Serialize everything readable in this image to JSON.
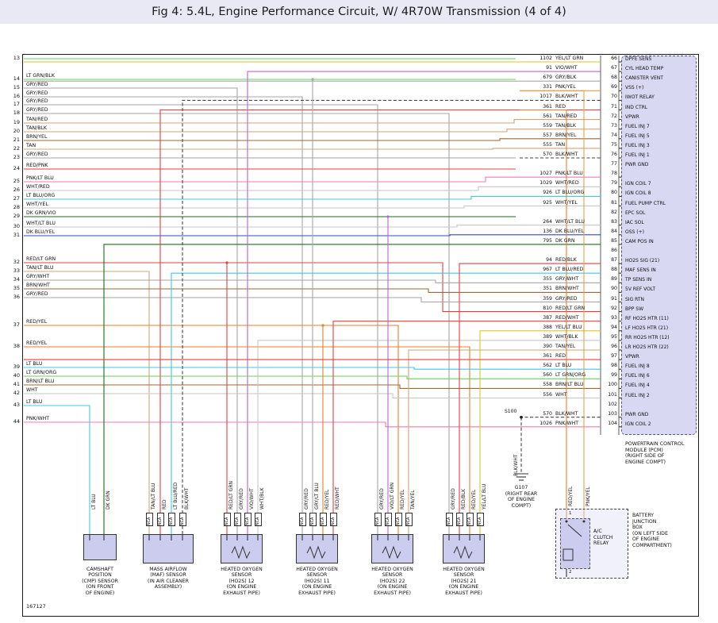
{
  "title": "Fig 4: 5.4L, Engine Performance Circuit, W/ 4R70W Transmission (4 of 4)",
  "doc_number": "167127",
  "left_pins": [
    {
      "pin": "13",
      "label": ""
    },
    {
      "pin": "14",
      "label": "LT GRN/BLK"
    },
    {
      "pin": "15",
      "label": "GRY/RED"
    },
    {
      "pin": "16",
      "label": "GRY/RED"
    },
    {
      "pin": "17",
      "label": "GRY/RED"
    },
    {
      "pin": "18",
      "label": "GRY/RED"
    },
    {
      "pin": "19",
      "label": "TAN/RED"
    },
    {
      "pin": "20",
      "label": "TAN/BLK"
    },
    {
      "pin": "21",
      "label": "BRN/YEL"
    },
    {
      "pin": "22",
      "label": "TAN"
    },
    {
      "pin": "23",
      "label": "GRY/RED"
    },
    {
      "pin": "24",
      "label": "RED/PNK"
    },
    {
      "pin": "25",
      "label": "PNK/LT BLU"
    },
    {
      "pin": "26",
      "label": "WHT/RED"
    },
    {
      "pin": "27",
      "label": "LT BLU/ORG"
    },
    {
      "pin": "28",
      "label": "WHT/YEL"
    },
    {
      "pin": "29",
      "label": "DK GRN/VIO"
    },
    {
      "pin": "30",
      "label": "WHT/LT BLU"
    },
    {
      "pin": "31",
      "label": "DK BLU/YEL"
    },
    {
      "pin": "32",
      "label": "RED/LT GRN"
    },
    {
      "pin": "33",
      "label": "TAN/LT BLU"
    },
    {
      "pin": "34",
      "label": "GRY/WHT"
    },
    {
      "pin": "35",
      "label": "BRN/WHT"
    },
    {
      "pin": "36",
      "label": "GRY/RED"
    },
    {
      "pin": "37",
      "label": "RED/YEL"
    },
    {
      "pin": "38",
      "label": "RED/YEL"
    },
    {
      "pin": "39",
      "label": "LT BLU"
    },
    {
      "pin": "40",
      "label": "LT GRN/ORG"
    },
    {
      "pin": "41",
      "label": "BRN/LT BLU"
    },
    {
      "pin": "42",
      "label": "WHT"
    },
    {
      "pin": "43",
      "label": "LT BLU"
    },
    {
      "pin": "44",
      "label": "PNK/WHT"
    }
  ],
  "pcm": {
    "caption_lines": [
      "POWERTRAIN CONTROL",
      "MODULE (PCM)",
      "(RIGHT SIDE OF",
      "ENGINE COMPT)"
    ],
    "rows": [
      {
        "wire": "1102",
        "color": "YEL/LT GRN",
        "pin": "66",
        "signal": "DPFE SENS"
      },
      {
        "wire": "91",
        "color": "VIO/WHT",
        "pin": "67",
        "signal": "CYL HEAD TEMP"
      },
      {
        "wire": "679",
        "color": "GRY/BLK",
        "pin": "68",
        "signal": "CANISTER VENT"
      },
      {
        "wire": "331",
        "color": "PNK/YEL",
        "pin": "69",
        "signal": "VSS (+)"
      },
      {
        "wire": "1017",
        "color": "BLK/WHT",
        "pin": "70",
        "signal": "IWOT RELAY"
      },
      {
        "wire": "361",
        "color": "RED",
        "pin": "71",
        "signal": "IND CTRL"
      },
      {
        "wire": "561",
        "color": "TAN/RED",
        "pin": "72",
        "signal": "VPWR"
      },
      {
        "wire": "559",
        "color": "TAN/BLK",
        "pin": "73",
        "signal": "FUEL INJ 7"
      },
      {
        "wire": "557",
        "color": "BRN/YEL",
        "pin": "74",
        "signal": "FUEL INJ 5"
      },
      {
        "wire": "555",
        "color": "TAN",
        "pin": "75",
        "signal": "FUEL INJ 3"
      },
      {
        "wire": "570",
        "color": "BLK/WHT",
        "pin": "76",
        "signal": "FUEL INJ 1"
      },
      {
        "wire": "",
        "color": "",
        "pin": "77",
        "signal": "PWR GND"
      },
      {
        "wire": "1027",
        "color": "PNK/LT BLU",
        "pin": "78",
        "signal": ""
      },
      {
        "wire": "1029",
        "color": "WHT/RED",
        "pin": "79",
        "signal": "IGN COIL 7"
      },
      {
        "wire": "926",
        "color": "LT BLU/ORG",
        "pin": "80",
        "signal": "IGN COIL 8"
      },
      {
        "wire": "925",
        "color": "WHT/YEL",
        "pin": "81",
        "signal": "FUEL PUMP CTRL"
      },
      {
        "wire": "",
        "color": "",
        "pin": "82",
        "signal": "EPC SOL"
      },
      {
        "wire": "264",
        "color": "WHT/LT BLU",
        "pin": "83",
        "signal": "IAC SOL"
      },
      {
        "wire": "136",
        "color": "DK BLU/YEL",
        "pin": "84",
        "signal": "OSS (+)"
      },
      {
        "wire": "795",
        "color": "DK GRN",
        "pin": "85",
        "signal": "CAM POS IN"
      },
      {
        "wire": "",
        "color": "",
        "pin": "86",
        "signal": ""
      },
      {
        "wire": "94",
        "color": "RED/BLK",
        "pin": "87",
        "signal": "HO2S SIG (21)"
      },
      {
        "wire": "967",
        "color": "LT BLU/RED",
        "pin": "88",
        "signal": "MAF SENS IN"
      },
      {
        "wire": "355",
        "color": "GRY/WHT",
        "pin": "89",
        "signal": "TP SENS IN"
      },
      {
        "wire": "351",
        "color": "BRN/WHT",
        "pin": "90",
        "signal": "5V REF VOLT"
      },
      {
        "wire": "359",
        "color": "GRY/RED",
        "pin": "91",
        "signal": "SIG RTN"
      },
      {
        "wire": "810",
        "color": "RED/LT GRN",
        "pin": "92",
        "signal": "BPP SW"
      },
      {
        "wire": "387",
        "color": "RED/WHT",
        "pin": "93",
        "signal": "RF HO2S HTR (11)"
      },
      {
        "wire": "388",
        "color": "YEL/LT BLU",
        "pin": "94",
        "signal": "LF HO2S HTR (21)"
      },
      {
        "wire": "389",
        "color": "WHT/BLK",
        "pin": "95",
        "signal": "RR HO2S HTR (12)"
      },
      {
        "wire": "390",
        "color": "TAN/YEL",
        "pin": "96",
        "signal": "LR HO2S HTR (22)"
      },
      {
        "wire": "361",
        "color": "RED",
        "pin": "97",
        "signal": "VPWR"
      },
      {
        "wire": "562",
        "color": "LT BLU",
        "pin": "98",
        "signal": "FUEL INJ 8"
      },
      {
        "wire": "560",
        "color": "LT GRN/ORG",
        "pin": "99",
        "signal": "FUEL INJ 6"
      },
      {
        "wire": "558",
        "color": "BRN/LT BLU",
        "pin": "100",
        "signal": "FUEL INJ 4"
      },
      {
        "wire": "556",
        "color": "WHT",
        "pin": "101",
        "signal": "FUEL INJ 2"
      },
      {
        "wire": "",
        "color": "",
        "pin": "102",
        "signal": ""
      },
      {
        "wire": "570",
        "color": "BLK/WHT",
        "pin": "103",
        "signal": "PWR GND"
      },
      {
        "wire": "1026",
        "color": "PNK/WHT",
        "pin": "104",
        "signal": "IGN COIL 2"
      }
    ]
  },
  "components": [
    {
      "id": "C1",
      "type": "plain",
      "nca": false,
      "pins": [
        "LT BLU",
        "DK GRN"
      ],
      "caption_lines": [
        "CAMSHAFT",
        "POSITION",
        "(CMP) SENSOR",
        "(ON FRONT",
        "OF ENGINE)"
      ]
    },
    {
      "id": "C2",
      "type": "plain",
      "nca": true,
      "pins": [
        "TAN/LT BLU",
        "RED",
        "LT BLU/RED",
        "BLK/WHT"
      ],
      "caption_lines": [
        "MASS AIRFLOW",
        "(MAF) SENSOR",
        "(IN AIR CLEANER",
        "ASSEMBLY)"
      ]
    },
    {
      "id": "C3",
      "type": "heater",
      "nca": true,
      "pins": [
        "RED/LT GRN",
        "GRY/RED",
        "VIO/WHT",
        "WHT/BLK"
      ],
      "caption_lines": [
        "HEATED OXYGEN",
        "SENSOR",
        "(HO2S) 12",
        "(ON ENGINE",
        "EXHAUST PIPE)"
      ]
    },
    {
      "id": "C4",
      "type": "heater",
      "nca": true,
      "pins": [
        "GRY/RED",
        "GRY/LT BLU",
        "RED/YEL",
        "RED/WHT"
      ],
      "caption_lines": [
        "HEATED OXYGEN",
        "SENSOR",
        "(HO2S) 11",
        "(ON ENGINE",
        "EXHAUST PIPE)"
      ]
    },
    {
      "id": "C5",
      "type": "heater",
      "nca": true,
      "pins": [
        "GRY/RED",
        "VIO/LT GRN",
        "RED/YEL",
        "TAN/YEL"
      ],
      "caption_lines": [
        "HEATED OXYGEN",
        "SENSOR",
        "(HO2S) 22",
        "(ON ENGINE",
        "EXHAUST PIPE)"
      ]
    },
    {
      "id": "C6",
      "type": "heater",
      "nca": true,
      "pins": [
        "GRY/RED",
        "RED/BLK",
        "RED/YEL",
        "YEL/LT BLU"
      ],
      "caption_lines": [
        "HEATED OXYGEN",
        "SENSOR",
        "(HO2S) 21",
        "(ON ENGINE",
        "EXHAUST PIPE)"
      ]
    },
    {
      "id": "C7",
      "type": "relay",
      "nca": false,
      "pins": [
        "RED/YEL",
        "PNK/YEL"
      ],
      "pin_numbers": [
        "1",
        "2"
      ],
      "relay_label_lines": [
        "A/C",
        "CLUTCH",
        "RELAY"
      ],
      "box_caption_lines": [
        "BATTERY",
        "JUNCTION",
        "BOX",
        "(ON LEFT SIDE",
        "OF ENGINE",
        "COMPARTMENT)"
      ]
    }
  ],
  "ground": {
    "label": "G107",
    "caption_lines": [
      "G107",
      "(RIGHT REAR",
      "OF ENGINE",
      "COMPT)"
    ],
    "wire_label": "BLK/WHT",
    "splice_label": "S100"
  },
  "wire_colors": {
    "LT GRN": "#5cd65c",
    "GRN": "#2e9e2e",
    "DK GRN": "#157015",
    "LT BLU": "#3fc8e8",
    "DK BLU": "#2a4ccc",
    "RED": "#e43f3f",
    "TAN": "#cfa578",
    "BRN": "#9a6a32",
    "GRY": "#a6a6a6",
    "PNK": "#f07ab8",
    "WHT": "#c6c6c6",
    "YEL": "#d8c52a",
    "VIO": "#b863d8",
    "ORG": "#f28a1c",
    "BLK": "#454545",
    "RED/YEL": "#ef7c28",
    "PNK/YEL": "#f29a3e"
  },
  "connections": [
    {
      "from": "L13",
      "to": null,
      "color": "LT GRN"
    },
    {
      "from": "L14",
      "to": null,
      "color": "LT GRN/BLK"
    },
    {
      "from": "L15",
      "to": "C3.2",
      "color": "GRY/RED"
    },
    {
      "from": "L16",
      "to": "C4.1",
      "color": "GRY/RED"
    },
    {
      "from": "L17",
      "to": "C5.1",
      "color": "GRY/RED"
    },
    {
      "from": "L18",
      "to": "C6.1",
      "color": "GRY/RED"
    },
    {
      "from": "L19",
      "to": "P72",
      "color": "TAN/RED"
    },
    {
      "from": "L20",
      "to": "P73",
      "color": "TAN/BLK"
    },
    {
      "from": "L21",
      "to": "P74",
      "color": "BRN/YEL"
    },
    {
      "from": "L22",
      "to": "P75",
      "color": "TAN"
    },
    {
      "from": "L23",
      "to": null,
      "color": "GRY/RED"
    },
    {
      "from": "L24",
      "to": null,
      "color": "RED/PNK"
    },
    {
      "from": "L25",
      "to": "P78",
      "color": "PNK/LT BLU"
    },
    {
      "from": "L26",
      "to": "P79",
      "color": "WHT/RED"
    },
    {
      "from": "L27",
      "to": "P80",
      "color": "LT BLU/ORG"
    },
    {
      "from": "L28",
      "to": "P81",
      "color": "WHT/YEL"
    },
    {
      "from": "L29",
      "to": null,
      "color": "DK GRN/VIO"
    },
    {
      "from": "L30",
      "to": "P83",
      "color": "WHT/LT BLU"
    },
    {
      "from": "L31",
      "to": "P84",
      "color": "DK BLU/YEL"
    },
    {
      "from": "L32",
      "to": "P92",
      "color": "RED/LT GRN"
    },
    {
      "from": "L33",
      "to": "C2.1",
      "color": "TAN/LT BLU"
    },
    {
      "from": "L34",
      "to": "P89",
      "color": "GRY/WHT"
    },
    {
      "from": "L35",
      "to": "P90",
      "color": "BRN/WHT"
    },
    {
      "from": "L36",
      "to": "P91",
      "color": "GRY/RED"
    },
    {
      "from": "L37",
      "to": "C5.3",
      "color": "RED/YEL"
    },
    {
      "from": "L38",
      "to": "C6.3",
      "color": "RED/YEL"
    },
    {
      "from": "L39",
      "to": "P98",
      "color": "LT BLU"
    },
    {
      "from": "L40",
      "to": "P99",
      "color": "LT GRN/ORG"
    },
    {
      "from": "L41",
      "to": "P100",
      "color": "BRN/LT BLU"
    },
    {
      "from": "L42",
      "to": "P101",
      "color": "WHT"
    },
    {
      "from": "L43",
      "to": "C1.1",
      "color": "LT BLU"
    },
    {
      "from": "L44",
      "to": "P104",
      "color": "PNK/WHT"
    },
    {
      "from": "C1.2",
      "to": "P85",
      "color": "DK GRN"
    },
    {
      "from": "C2.2",
      "to": "P71",
      "color": "RED"
    },
    {
      "from": "C2.3",
      "to": "P88",
      "color": "LT BLU/RED"
    },
    {
      "from": "C2.4",
      "to": "P70",
      "color": "BLK/WHT"
    },
    {
      "from": "C3.1",
      "to": "L32",
      "color": "RED/LT GRN"
    },
    {
      "from": "C3.3",
      "to": "P67",
      "color": "VIO/WHT"
    },
    {
      "from": "C3.4",
      "to": "P95",
      "color": "WHT/BLK"
    },
    {
      "from": "C4.2",
      "to": "L14",
      "color": "GRY/LT BLU"
    },
    {
      "from": "C4.3",
      "to": "L37",
      "color": "RED/YEL"
    },
    {
      "from": "C4.4",
      "to": "P93",
      "color": "RED/WHT"
    },
    {
      "from": "C5.2",
      "to": "L29",
      "color": "VIO/LT GRN"
    },
    {
      "from": "C5.4",
      "to": "P96",
      "color": "TAN/YEL"
    },
    {
      "from": "C6.2",
      "to": "P87",
      "color": "RED/BL K"
    },
    {
      "from": "C6.4",
      "to": "P94",
      "color": "YEL/LT BLU"
    },
    {
      "from": "C7.1",
      "to": "P71",
      "color": "RED/YEL"
    },
    {
      "from": "C7.2",
      "to": "P69",
      "color": "PNK/YEL"
    },
    {
      "from": "P66",
      "to": null,
      "color": "YEL/LT GRN"
    },
    {
      "from": "P68",
      "to": null,
      "color": "GRY/BLK"
    },
    {
      "from": "P97",
      "to": null,
      "color": "RED"
    }
  ]
}
